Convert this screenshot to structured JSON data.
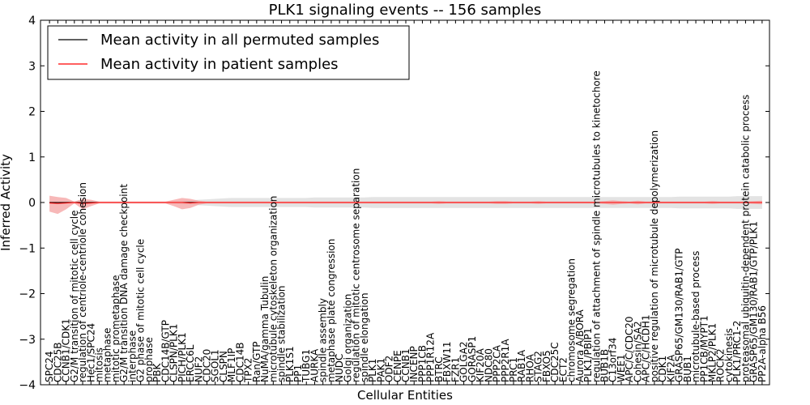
{
  "chart_data": {
    "type": "line",
    "title": "PLK1 signaling events -- 156 samples",
    "xlabel": "Cellular Entities",
    "ylabel": "Inferred Activity",
    "ylim": [
      -4,
      4
    ],
    "yticks": [
      -4,
      -3,
      -2,
      -1,
      0,
      1,
      2,
      3,
      4
    ],
    "ytick_labels": [
      "−4",
      "−3",
      "−2",
      "−1",
      "0",
      "1",
      "2",
      "3",
      "4"
    ],
    "grid": false,
    "legend_position": "top-left",
    "categories": [
      "SPC24",
      "CDC25B",
      "CCNB1/CDK1",
      "G2/M transition of mitotic cell cycle",
      "regulation of centriole-centriole cohesion",
      "Hec1/SPC24",
      "mitosis",
      "metaphase",
      "mitotic prometaphase",
      "G2/M transition DNA damage checkpoint",
      "interphase",
      "G2 phase of mitotic cell cycle",
      "prophase",
      "PBK",
      "CDC14B/GTP",
      "CLSPN/PLK1",
      "PICH/PLK1",
      "ERCC6L",
      "NUF2",
      "CDC20",
      "SGOL1",
      "CLSPN",
      "MLF1IP",
      "CDC14B",
      "TPX2",
      "Ran/GTP",
      "NuMA/gamma Tubulin",
      "microtubule cytoskeleton organization",
      "spindle stabilization",
      "PLK1S1",
      "PP1",
      "TUBG1",
      "AURKA",
      "spindle assembly",
      "metaphase plate congression",
      "NUDC",
      "Golgi organization",
      "regulation of mitotic centrosome separation",
      "spindle elongation",
      "PLK1",
      "PAK1",
      "ODF2",
      "CENPE",
      "CCNB1",
      "INCENP",
      "PPP1CB",
      "PPP1R12A",
      "BTRC",
      "FBXW11",
      "FZR1",
      "GOLGA2",
      "GORASP1",
      "KIF20A",
      "NDC80",
      "PPP2CA",
      "PPP2R1A",
      "PRC1",
      "RAB1A",
      "RHOA",
      "STAG2",
      "FBXO5",
      "CDC25C",
      "ECT2",
      "chromosome segregation",
      "Aurora A/BORA",
      "PLK1/PBIP1",
      "regulation of attachment of spindle microtubules to kinetochore",
      "BUB1B",
      "C13orf34",
      "WEE1",
      "APC/C/CDC20",
      "Cohesin/SA2",
      "APC/C/HCDH1",
      "positive regulation of microtubule depolymerization",
      "CDK1",
      "KIF2A",
      "GRASP65/GM130/RAB1/GTP",
      "BUB1",
      "microtubule-based process",
      "PP1CB/MYPT1",
      "MKLP2/PLK1",
      "ROCK2",
      "cytokinesis",
      "PLK1/PRC1-2",
      "proteasomal ubiquitin-dependent protein catabolic process",
      "GRASP65/GM130/RAB1/GTP/PLK1",
      "PP2A-alpha B56"
    ],
    "series": [
      {
        "name": "Mean activity in all permuted samples",
        "color": "#000000",
        "values": [
          0.0,
          0.0,
          0.0,
          0.0,
          0.0,
          0.0,
          0.0,
          0.0,
          0.0,
          0.0,
          0.0,
          0.0,
          0.0,
          0.0,
          0.0,
          0.0,
          0.0,
          0.0,
          0.0,
          0.0,
          0.0,
          0.0,
          0.0,
          0.0,
          0.0,
          0.0,
          0.0,
          0.0,
          0.0,
          0.0,
          0.0,
          0.0,
          0.0,
          0.0,
          0.0,
          0.0,
          0.0,
          0.0,
          0.0,
          0.0,
          0.0,
          0.0,
          0.0,
          0.0,
          0.0,
          0.0,
          0.0,
          0.0,
          0.0,
          0.0,
          0.0,
          0.0,
          0.0,
          0.0,
          0.0,
          0.0,
          0.0,
          0.0,
          0.0,
          0.0,
          0.0,
          0.0,
          0.0,
          0.0,
          0.0,
          0.0,
          0.0,
          0.0,
          0.0,
          0.0,
          0.0,
          0.0,
          0.0,
          0.0,
          0.0,
          0.0,
          0.0,
          0.0,
          0.0,
          0.0,
          0.0,
          0.0,
          0.0,
          0.0,
          0.0,
          0.0,
          0.0
        ],
        "band_lower": [
          -0.02,
          -0.02,
          -0.02,
          -0.02,
          -0.02,
          -0.02,
          -0.02,
          -0.02,
          -0.02,
          -0.02,
          -0.02,
          -0.02,
          -0.02,
          -0.02,
          -0.02,
          -0.03,
          -0.04,
          -0.05,
          -0.06,
          -0.07,
          -0.08,
          -0.09,
          -0.1,
          -0.1,
          -0.1,
          -0.1,
          -0.1,
          -0.1,
          -0.1,
          -0.1,
          -0.1,
          -0.1,
          -0.11,
          -0.11,
          -0.11,
          -0.11,
          -0.11,
          -0.11,
          -0.11,
          -0.12,
          -0.12,
          -0.12,
          -0.12,
          -0.12,
          -0.12,
          -0.12,
          -0.12,
          -0.12,
          -0.12,
          -0.12,
          -0.12,
          -0.12,
          -0.12,
          -0.12,
          -0.12,
          -0.12,
          -0.12,
          -0.12,
          -0.12,
          -0.12,
          -0.12,
          -0.12,
          -0.12,
          -0.12,
          -0.12,
          -0.12,
          -0.12,
          -0.12,
          -0.12,
          -0.12,
          -0.12,
          -0.12,
          -0.12,
          -0.12,
          -0.12,
          -0.12,
          -0.13,
          -0.13,
          -0.13,
          -0.13,
          -0.13,
          -0.13,
          -0.13,
          -0.14,
          -0.14,
          -0.14,
          -0.14
        ],
        "band_upper": [
          0.02,
          0.02,
          0.02,
          0.02,
          0.02,
          0.02,
          0.02,
          0.02,
          0.02,
          0.02,
          0.02,
          0.02,
          0.02,
          0.02,
          0.02,
          0.03,
          0.04,
          0.05,
          0.06,
          0.07,
          0.08,
          0.09,
          0.1,
          0.1,
          0.1,
          0.1,
          0.1,
          0.1,
          0.1,
          0.1,
          0.1,
          0.1,
          0.11,
          0.11,
          0.11,
          0.11,
          0.11,
          0.11,
          0.11,
          0.12,
          0.12,
          0.12,
          0.12,
          0.12,
          0.12,
          0.12,
          0.12,
          0.12,
          0.12,
          0.12,
          0.12,
          0.12,
          0.12,
          0.12,
          0.12,
          0.12,
          0.12,
          0.12,
          0.12,
          0.12,
          0.12,
          0.12,
          0.12,
          0.12,
          0.12,
          0.12,
          0.12,
          0.12,
          0.12,
          0.12,
          0.12,
          0.12,
          0.12,
          0.12,
          0.12,
          0.12,
          0.13,
          0.13,
          0.13,
          0.13,
          0.13,
          0.13,
          0.13,
          0.14,
          0.14,
          0.14,
          0.14
        ]
      },
      {
        "name": "Mean activity in patient samples",
        "color": "#ff0000",
        "values": [
          -0.01,
          -0.02,
          -0.01,
          0.0,
          -0.02,
          -0.01,
          0.0,
          0.0,
          0.0,
          0.0,
          0.0,
          0.0,
          0.0,
          0.0,
          0.0,
          0.0,
          0.0,
          -0.01,
          0.0,
          0.0,
          0.0,
          0.0,
          0.0,
          0.0,
          0.0,
          0.0,
          0.0,
          0.0,
          0.0,
          0.0,
          0.0,
          0.0,
          0.0,
          0.0,
          0.0,
          0.0,
          0.0,
          0.0,
          0.0,
          0.0,
          0.0,
          0.0,
          0.0,
          0.0,
          0.0,
          0.0,
          0.0,
          0.0,
          0.0,
          0.0,
          0.0,
          0.0,
          0.0,
          0.0,
          0.0,
          0.0,
          0.0,
          0.0,
          0.0,
          0.0,
          0.0,
          0.0,
          0.0,
          0.0,
          0.0,
          0.0,
          0.0,
          0.0,
          0.0,
          0.0,
          0.0,
          0.0,
          0.0,
          0.0,
          0.0,
          0.0,
          0.0,
          0.0,
          0.0,
          0.0,
          0.0,
          0.0,
          0.0,
          0.0,
          0.0,
          0.0,
          0.0
        ],
        "band_lower": [
          -0.2,
          -0.25,
          -0.15,
          -0.02,
          -0.15,
          -0.08,
          -0.02,
          -0.02,
          -0.02,
          -0.02,
          -0.02,
          -0.02,
          -0.02,
          -0.02,
          -0.02,
          -0.08,
          -0.15,
          -0.12,
          -0.05,
          -0.02,
          -0.02,
          -0.02,
          -0.02,
          -0.02,
          -0.02,
          -0.02,
          -0.02,
          -0.02,
          -0.02,
          -0.02,
          -0.02,
          -0.02,
          -0.02,
          -0.02,
          -0.02,
          -0.02,
          -0.02,
          -0.02,
          -0.02,
          -0.02,
          -0.02,
          -0.02,
          -0.02,
          -0.02,
          -0.02,
          -0.02,
          -0.02,
          -0.03,
          -0.02,
          -0.02,
          -0.02,
          -0.02,
          -0.02,
          -0.02,
          -0.03,
          -0.03,
          -0.02,
          -0.02,
          -0.02,
          -0.03,
          -0.02,
          -0.02,
          -0.02,
          -0.02,
          -0.02,
          -0.02,
          -0.02,
          -0.03,
          -0.05,
          -0.03,
          -0.02,
          -0.04,
          -0.02,
          -0.02,
          -0.02,
          -0.02,
          -0.02,
          -0.02,
          -0.02,
          -0.02,
          -0.03,
          -0.02,
          -0.02,
          -0.02,
          -0.02,
          -0.03,
          -0.04
        ],
        "band_upper": [
          0.15,
          0.12,
          0.1,
          0.02,
          0.08,
          0.06,
          0.02,
          0.02,
          0.02,
          0.02,
          0.02,
          0.02,
          0.02,
          0.02,
          0.02,
          0.06,
          0.1,
          0.08,
          0.04,
          0.02,
          0.02,
          0.02,
          0.02,
          0.02,
          0.02,
          0.02,
          0.02,
          0.02,
          0.02,
          0.02,
          0.02,
          0.02,
          0.02,
          0.02,
          0.02,
          0.02,
          0.02,
          0.02,
          0.02,
          0.02,
          0.02,
          0.02,
          0.02,
          0.02,
          0.02,
          0.02,
          0.02,
          0.03,
          0.02,
          0.02,
          0.02,
          0.02,
          0.02,
          0.02,
          0.03,
          0.03,
          0.02,
          0.02,
          0.02,
          0.03,
          0.02,
          0.02,
          0.02,
          0.02,
          0.02,
          0.02,
          0.02,
          0.03,
          0.05,
          0.03,
          0.02,
          0.04,
          0.02,
          0.02,
          0.02,
          0.02,
          0.02,
          0.02,
          0.02,
          0.02,
          0.03,
          0.02,
          0.02,
          0.02,
          0.02,
          0.03,
          0.04
        ]
      }
    ],
    "colors": {
      "permuted_band": "#d9d9d9",
      "patient_band": "#f4a0a0",
      "axis": "#000000"
    }
  }
}
